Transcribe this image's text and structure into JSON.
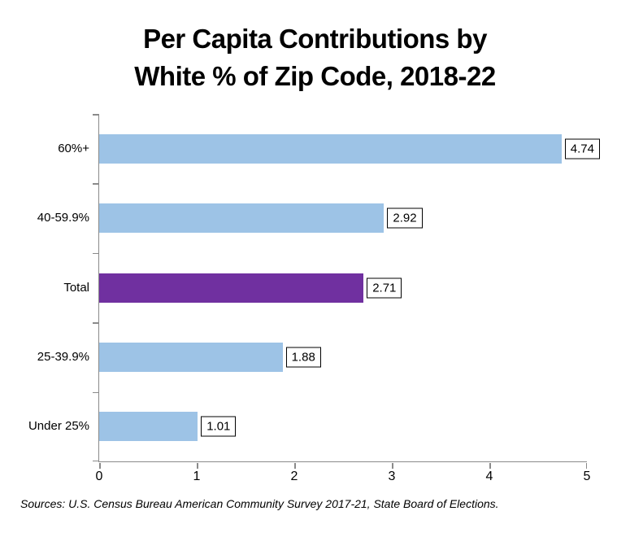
{
  "title": {
    "line1": "Per Capita Contributions by",
    "line2": "White % of Zip Code, 2018-22"
  },
  "source_note": "Sources: U.S. Census Bureau American Community Survey 2017-21, State Board of Elections.",
  "colors": {
    "bar": "#9DC3E6",
    "highlight_bar": "#7030A0",
    "axis": "#8a8a8a",
    "label_border": "#000000",
    "label_background": "#ffffff",
    "text": "#000000"
  },
  "chart_data": {
    "type": "bar",
    "orientation": "horizontal",
    "title": "Per Capita Contributions by White % of Zip Code, 2018-22",
    "categories": [
      "60%+",
      "40-59.9%",
      "Total",
      "25-39.9%",
      "Under 25%"
    ],
    "values": [
      4.74,
      2.92,
      2.71,
      1.88,
      1.01
    ],
    "value_labels": [
      "4.74",
      "2.92",
      "2.71",
      "1.88",
      "1.01"
    ],
    "highlight_index": 2,
    "xlabel": "",
    "ylabel": "",
    "xlim": [
      0,
      5
    ],
    "x_ticks": [
      0,
      1,
      2,
      3,
      4,
      5
    ],
    "x_tick_labels": [
      "0",
      "1",
      "2",
      "3",
      "4",
      "5"
    ],
    "grid": false,
    "legend": null,
    "data_label_style": "boxed"
  }
}
